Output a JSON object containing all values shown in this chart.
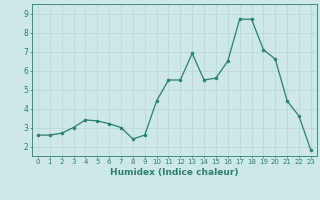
{
  "x": [
    0,
    1,
    2,
    3,
    4,
    5,
    6,
    7,
    8,
    9,
    10,
    11,
    12,
    13,
    14,
    15,
    16,
    17,
    18,
    19,
    20,
    21,
    22,
    23
  ],
  "y": [
    2.6,
    2.6,
    2.7,
    3.0,
    3.4,
    3.35,
    3.2,
    3.0,
    2.4,
    2.6,
    4.4,
    5.5,
    5.5,
    6.9,
    5.5,
    5.6,
    6.5,
    8.7,
    8.7,
    7.1,
    6.6,
    4.4,
    3.6,
    1.8
  ],
  "line_color": "#2e7d6e",
  "marker": "o",
  "markersize": 2.0,
  "linewidth": 0.9,
  "xlabel": "Humidex (Indice chaleur)",
  "xlabel_fontsize": 6.5,
  "xlim": [
    -0.5,
    23.5
  ],
  "ylim": [
    1.5,
    9.5
  ],
  "yticks": [
    2,
    3,
    4,
    5,
    6,
    7,
    8,
    9
  ],
  "xticks": [
    0,
    1,
    2,
    3,
    4,
    5,
    6,
    7,
    8,
    9,
    10,
    11,
    12,
    13,
    14,
    15,
    16,
    17,
    18,
    19,
    20,
    21,
    22,
    23
  ],
  "bg_color": "#cce8e8",
  "grid_color": "#b8d4d4",
  "tick_color": "#2e7d6e",
  "label_color": "#2e7d6e",
  "border_color": "#2e7d6e",
  "tick_fontsize": 5.0,
  "ytick_fontsize": 5.5
}
